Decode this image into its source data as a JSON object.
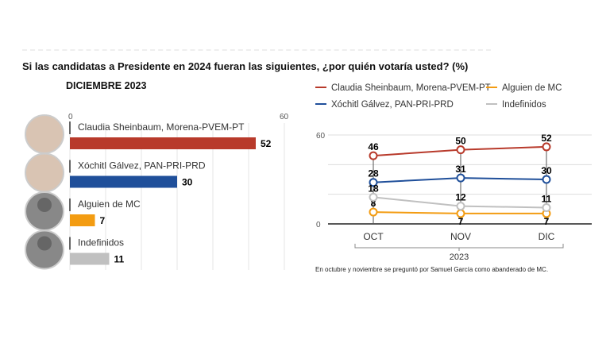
{
  "title": "Si las candidatas a Presidente en 2024 fueran las siguientes, ¿por quién votaría usted? (%)",
  "note": "En octubre y noviembre se preguntó por Samuel García como abanderado de MC.",
  "colors": {
    "sheinbaum": "#b83a2b",
    "galvez": "#1f4f9a",
    "mc": "#f39c12",
    "indefinidos": "#c0c0c0"
  },
  "chart_data": [
    {
      "type": "bar",
      "subtitle": "DICIEMBRE 2023",
      "xlim": [
        0,
        60
      ],
      "ticks": [
        "0",
        "60"
      ],
      "categories": [
        "Claudia Sheinbaum, Morena-PVEM-PT",
        "Xóchitl Gálvez, PAN-PRI-PRD",
        "Alguien de MC",
        "Indefinidos"
      ],
      "values": [
        52,
        30,
        7,
        11
      ]
    },
    {
      "type": "line",
      "ylim": [
        0,
        60
      ],
      "yticks": [
        "0",
        "60"
      ],
      "grid": true,
      "legend_position": "top",
      "categories": [
        "OCT",
        "NOV",
        "DIC"
      ],
      "xlabel": "2023",
      "series": [
        {
          "name": "Claudia Sheinbaum, Morena-PVEM-PT",
          "key": "sheinbaum",
          "values": [
            46,
            50,
            52
          ]
        },
        {
          "name": "Xóchitl Gálvez, PAN-PRI-PRD",
          "key": "galvez",
          "values": [
            28,
            31,
            30
          ]
        },
        {
          "name": "Alguien de MC",
          "key": "mc",
          "values": [
            8,
            7,
            7
          ]
        },
        {
          "name": "Indefinidos",
          "key": "indefinidos",
          "values": [
            18,
            12,
            11
          ]
        }
      ]
    }
  ]
}
